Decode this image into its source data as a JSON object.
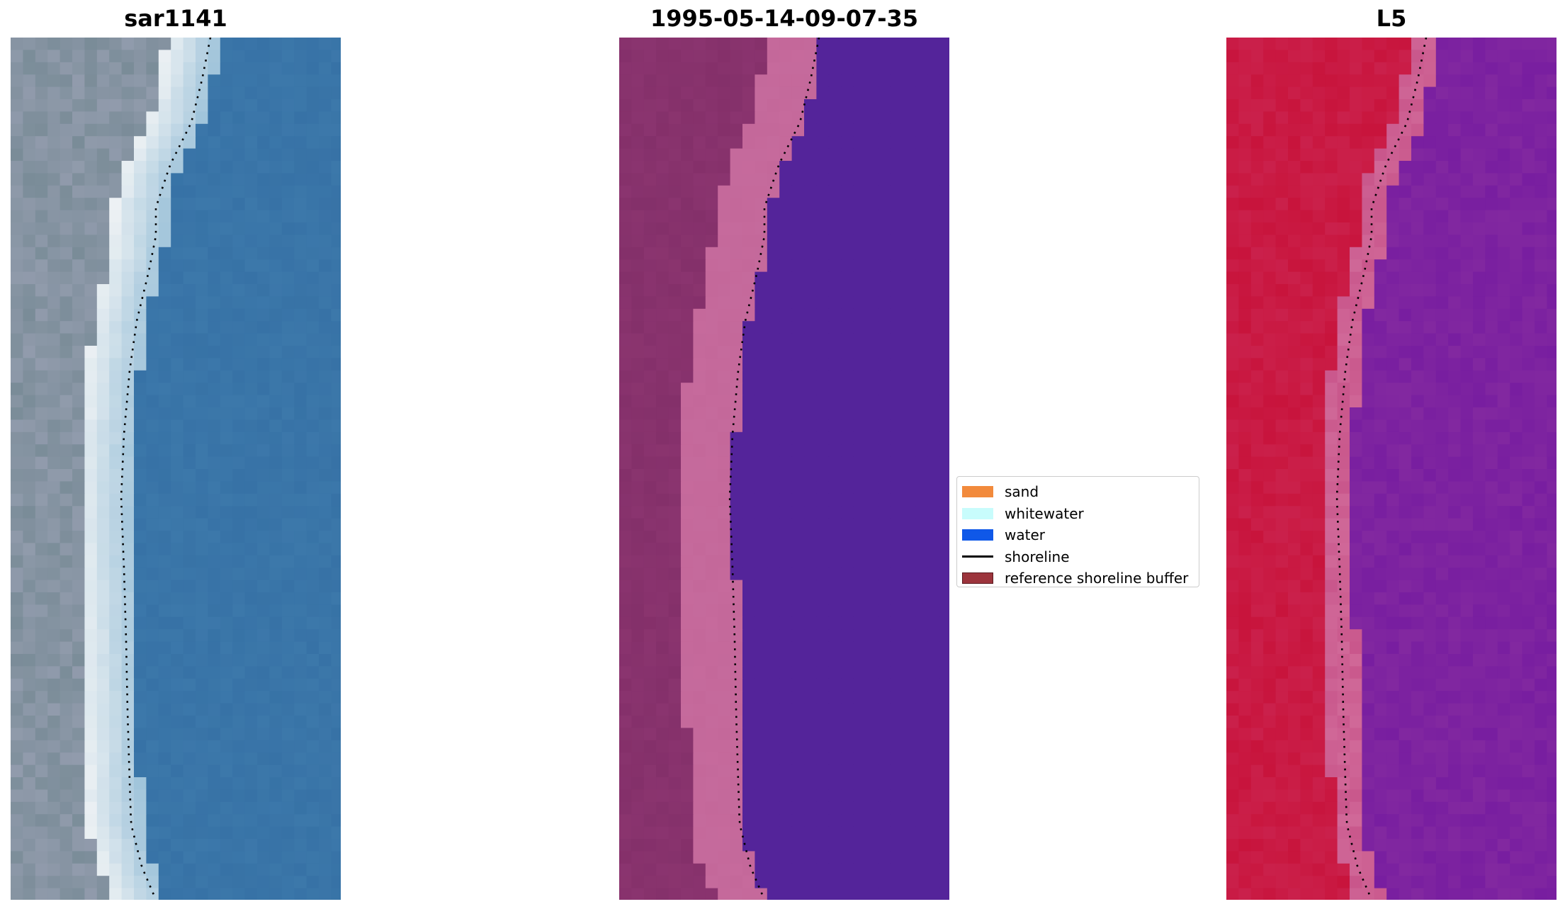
{
  "titles": {
    "left": "sar1141",
    "middle": "1995-05-14-09-07-35",
    "right": "L5"
  },
  "legend": {
    "items": [
      {
        "label": "sand",
        "color": "#f28a3c",
        "kind": "patch"
      },
      {
        "label": "whitewater",
        "color": "#c8fcfc",
        "kind": "patch"
      },
      {
        "label": "water",
        "color": "#0f58e8",
        "kind": "patch"
      },
      {
        "label": "shoreline",
        "color": "#000000",
        "kind": "line"
      },
      {
        "label": "reference shoreline buffer",
        "color": "#9c343c",
        "kind": "patch"
      }
    ]
  },
  "colors": {
    "rgb_water": "#3c78aa",
    "rgb_beach": "#eef2f4",
    "rgb_land": "#7a8c98",
    "class_land": "#84306a",
    "class_beach": "#c4689a",
    "class_water": "#54249a",
    "mndwi_land": "#c8143c",
    "mndwi_beach": "#d06898",
    "mndwi_water": "#8228a0"
  }
}
